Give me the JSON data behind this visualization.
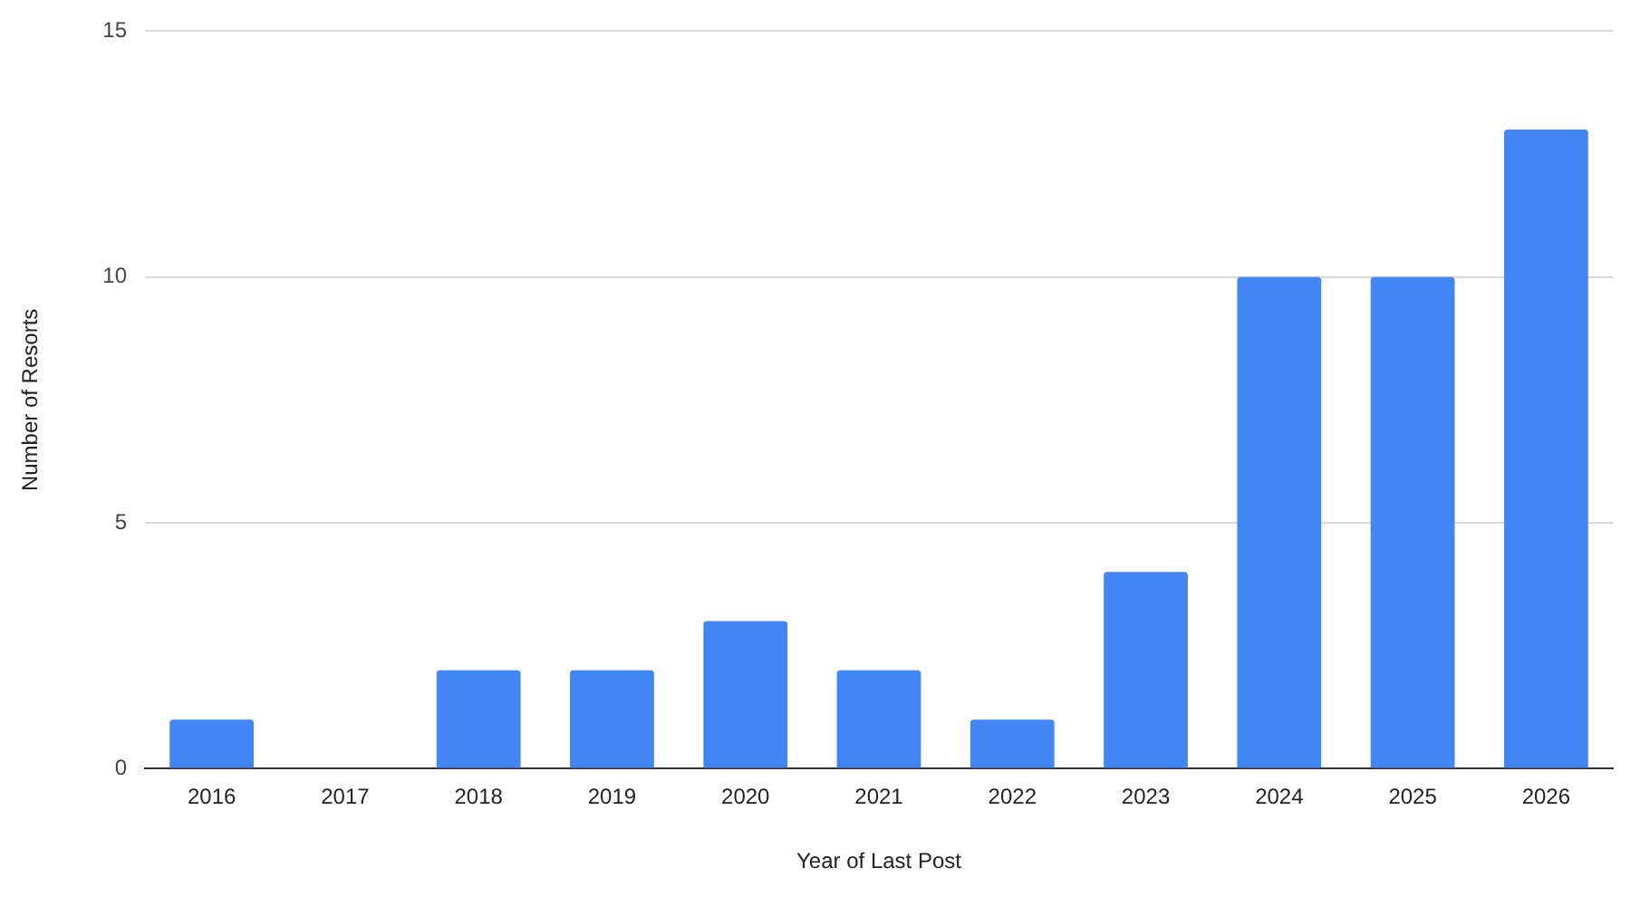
{
  "chart_data": {
    "type": "bar",
    "xlabel": "Year of Last Post",
    "ylabel": "Number of Resorts",
    "categories": [
      "2016",
      "2017",
      "2018",
      "2019",
      "2020",
      "2021",
      "2022",
      "2023",
      "2024",
      "2025",
      "2026"
    ],
    "values": [
      1,
      0,
      2,
      2,
      3,
      2,
      1,
      4,
      10,
      10,
      13
    ],
    "color": "#4285f4",
    "ylim": [
      0,
      15
    ],
    "yticks": [
      0,
      5,
      10,
      15
    ],
    "grid": "y",
    "legend": false
  }
}
